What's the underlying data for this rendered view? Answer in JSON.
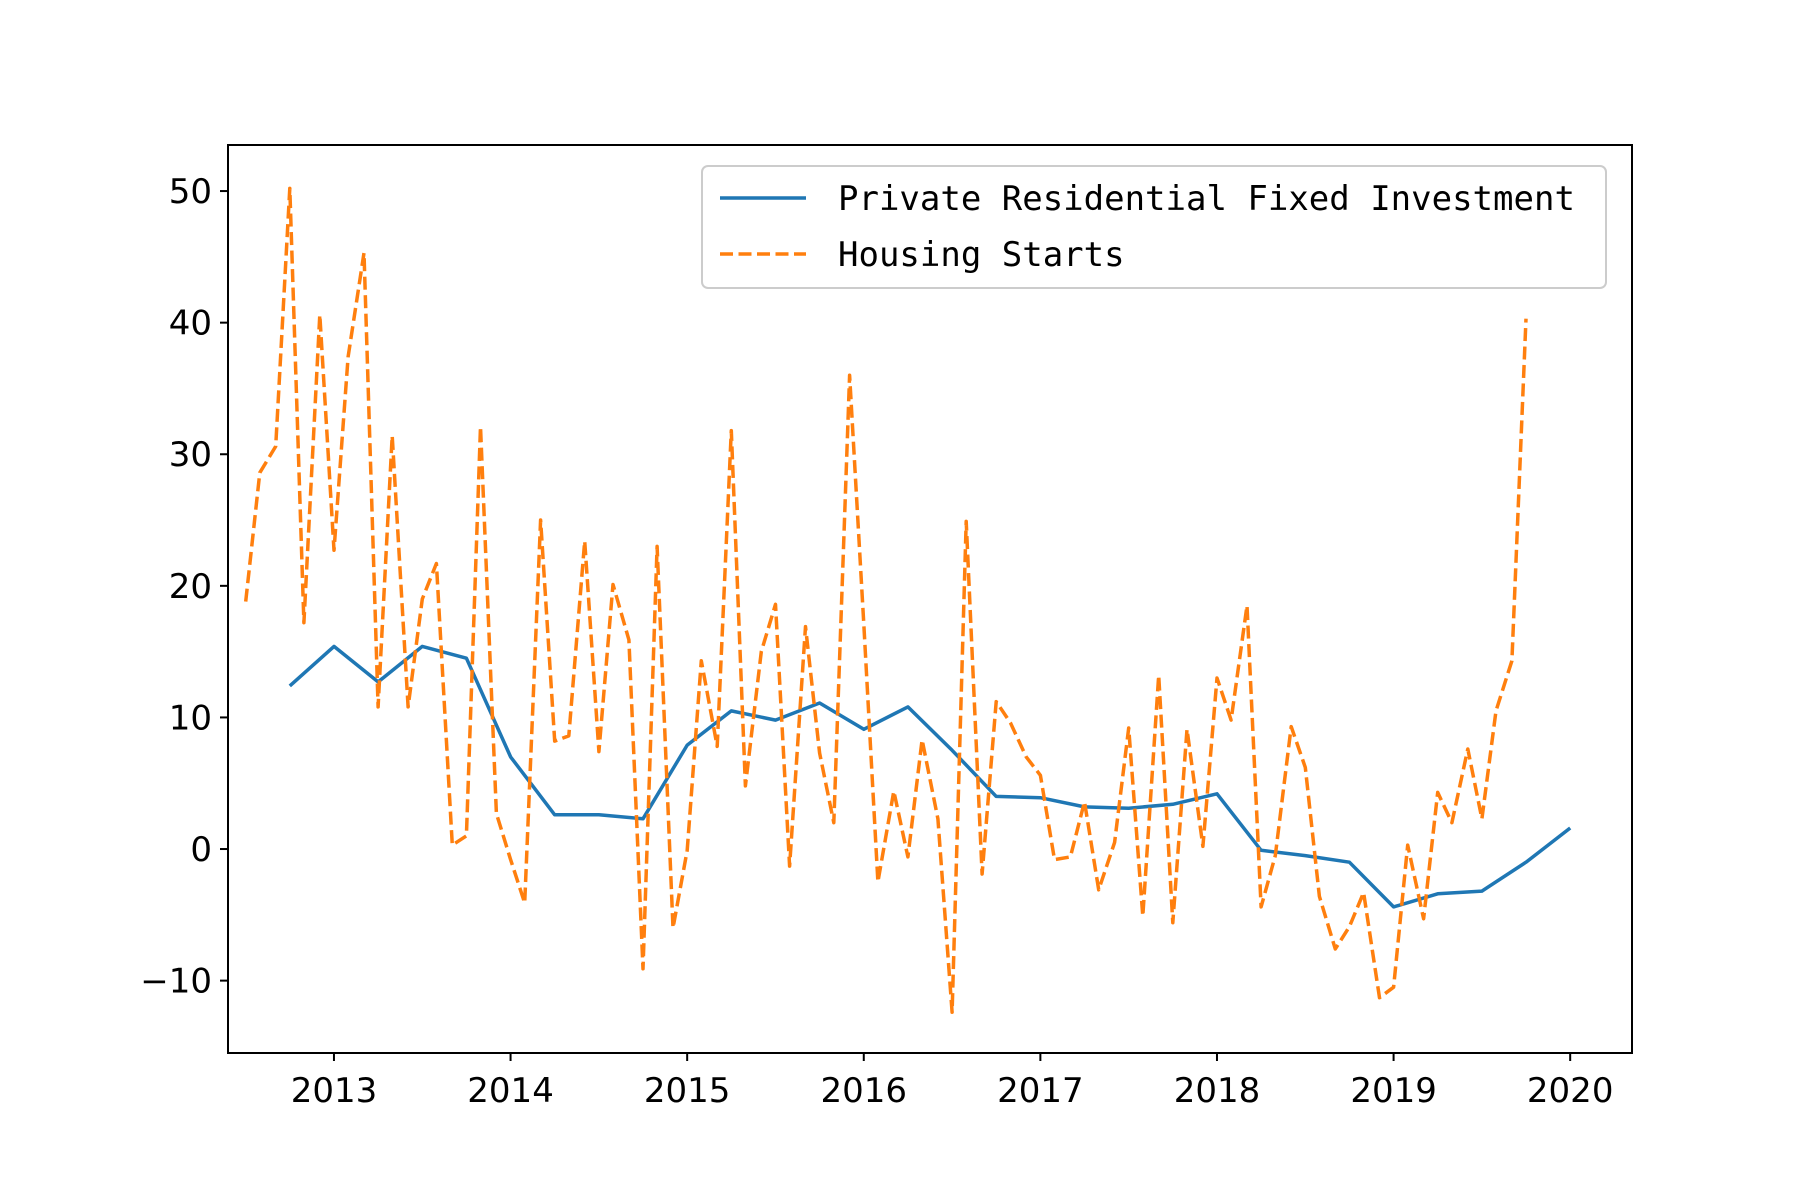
{
  "chart_data": {
    "type": "line",
    "title": "",
    "xlabel": "",
    "ylabel": "",
    "xlim": [
      2012.4,
      2020.35
    ],
    "ylim": [
      -15.5,
      53.5
    ],
    "x_ticks": [
      2013,
      2014,
      2015,
      2016,
      2017,
      2018,
      2019,
      2020
    ],
    "x_tick_labels": [
      "2013",
      "2014",
      "2015",
      "2016",
      "2017",
      "2018",
      "2019",
      "2020"
    ],
    "y_ticks": [
      -10,
      0,
      10,
      20,
      30,
      40,
      50
    ],
    "y_tick_labels": [
      "−10",
      "0",
      "10",
      "20",
      "30",
      "40",
      "50"
    ],
    "grid": false,
    "legend_position": "top-right",
    "series": [
      {
        "name": "Private Residential Fixed Investment",
        "color": "#1f77b4",
        "style": "solid",
        "points": [
          [
            2012.75,
            12.4
          ],
          [
            2013.0,
            15.4
          ],
          [
            2013.25,
            12.7
          ],
          [
            2013.5,
            15.4
          ],
          [
            2013.75,
            14.5
          ],
          [
            2014.0,
            7.0
          ],
          [
            2014.25,
            2.6
          ],
          [
            2014.5,
            2.6
          ],
          [
            2014.75,
            2.3
          ],
          [
            2015.0,
            7.9
          ],
          [
            2015.25,
            10.5
          ],
          [
            2015.5,
            9.8
          ],
          [
            2015.75,
            11.1
          ],
          [
            2016.0,
            9.1
          ],
          [
            2016.25,
            10.8
          ],
          [
            2016.5,
            7.5
          ],
          [
            2016.75,
            4.0
          ],
          [
            2017.0,
            3.9
          ],
          [
            2017.25,
            3.2
          ],
          [
            2017.5,
            3.1
          ],
          [
            2017.75,
            3.4
          ],
          [
            2018.0,
            4.2
          ],
          [
            2018.25,
            -0.1
          ],
          [
            2018.5,
            -0.5
          ],
          [
            2018.75,
            -1.0
          ],
          [
            2019.0,
            -4.4
          ],
          [
            2019.25,
            -3.4
          ],
          [
            2019.5,
            -3.2
          ],
          [
            2019.75,
            -1.0
          ],
          [
            2020.0,
            1.6
          ]
        ]
      },
      {
        "name": "Housing Starts",
        "color": "#ff7f0e",
        "style": "dashed",
        "points": [
          [
            2012.5,
            18.8
          ],
          [
            2012.58,
            28.6
          ],
          [
            2012.67,
            30.6
          ],
          [
            2012.75,
            50.2
          ],
          [
            2012.83,
            17.2
          ],
          [
            2012.92,
            40.6
          ],
          [
            2013.0,
            22.7
          ],
          [
            2013.08,
            37.4
          ],
          [
            2013.17,
            45.3
          ],
          [
            2013.25,
            10.8
          ],
          [
            2013.33,
            31.4
          ],
          [
            2013.42,
            10.8
          ],
          [
            2013.5,
            19.0
          ],
          [
            2013.58,
            21.7
          ],
          [
            2013.67,
            0.3
          ],
          [
            2013.75,
            1.0
          ],
          [
            2013.83,
            32.1
          ],
          [
            2013.92,
            2.7
          ],
          [
            2014.0,
            -0.8
          ],
          [
            2014.08,
            -4.1
          ],
          [
            2014.17,
            25.0
          ],
          [
            2014.25,
            8.2
          ],
          [
            2014.33,
            8.6
          ],
          [
            2014.42,
            23.4
          ],
          [
            2014.5,
            7.4
          ],
          [
            2014.58,
            20.1
          ],
          [
            2014.67,
            15.9
          ],
          [
            2014.75,
            -9.1
          ],
          [
            2014.83,
            23.0
          ],
          [
            2014.92,
            -6.0
          ],
          [
            2015.0,
            -0.1
          ],
          [
            2015.08,
            14.3
          ],
          [
            2015.17,
            7.8
          ],
          [
            2015.25,
            31.8
          ],
          [
            2015.33,
            4.8
          ],
          [
            2015.42,
            15.0
          ],
          [
            2015.5,
            18.6
          ],
          [
            2015.58,
            -1.3
          ],
          [
            2015.67,
            16.9
          ],
          [
            2015.75,
            7.3
          ],
          [
            2015.83,
            2.0
          ],
          [
            2015.92,
            36.0
          ],
          [
            2016.0,
            17.1
          ],
          [
            2016.08,
            -2.5
          ],
          [
            2016.17,
            4.4
          ],
          [
            2016.25,
            -0.6
          ],
          [
            2016.33,
            8.3
          ],
          [
            2016.42,
            2.3
          ],
          [
            2016.5,
            -12.4
          ],
          [
            2016.58,
            24.9
          ],
          [
            2016.67,
            -1.9
          ],
          [
            2016.75,
            11.2
          ],
          [
            2016.83,
            9.6
          ],
          [
            2016.92,
            7.0
          ],
          [
            2017.0,
            5.6
          ],
          [
            2017.08,
            -0.8
          ],
          [
            2017.17,
            -0.6
          ],
          [
            2017.25,
            3.6
          ],
          [
            2017.33,
            -3.1
          ],
          [
            2017.42,
            0.5
          ],
          [
            2017.5,
            9.2
          ],
          [
            2017.58,
            -5.1
          ],
          [
            2017.67,
            13.2
          ],
          [
            2017.75,
            -5.6
          ],
          [
            2017.83,
            9.1
          ],
          [
            2017.92,
            0.2
          ],
          [
            2018.0,
            13.0
          ],
          [
            2018.08,
            9.8
          ],
          [
            2018.17,
            18.5
          ],
          [
            2018.25,
            -4.4
          ],
          [
            2018.33,
            -0.5
          ],
          [
            2018.42,
            9.3
          ],
          [
            2018.5,
            6.2
          ],
          [
            2018.58,
            -3.6
          ],
          [
            2018.67,
            -7.6
          ],
          [
            2018.75,
            -5.9
          ],
          [
            2018.83,
            -3.3
          ],
          [
            2018.92,
            -11.3
          ],
          [
            2019.0,
            -10.5
          ],
          [
            2019.08,
            0.3
          ],
          [
            2019.17,
            -5.3
          ],
          [
            2019.25,
            4.3
          ],
          [
            2019.33,
            2.0
          ],
          [
            2019.42,
            7.6
          ],
          [
            2019.5,
            2.3
          ],
          [
            2019.58,
            10.5
          ],
          [
            2019.67,
            14.3
          ],
          [
            2019.75,
            40.3
          ]
        ]
      }
    ]
  }
}
